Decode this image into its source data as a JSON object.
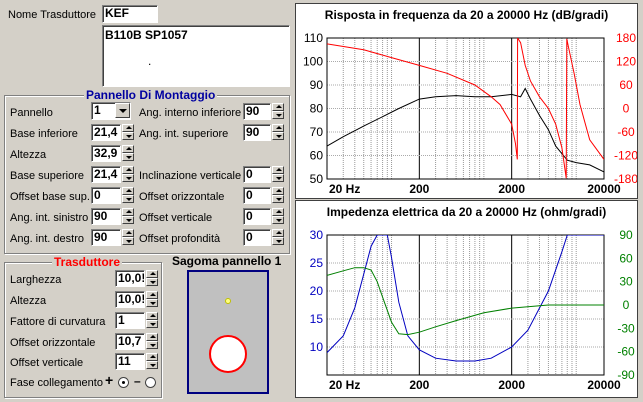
{
  "transducer_name": {
    "label": "Nome Trasduttore",
    "value": "KEF",
    "description": "B110B SP1057",
    "description_dot": "."
  },
  "panel": {
    "title": "Pannello Di Montaggio",
    "fields": {
      "pannello": {
        "label": "Pannello",
        "value": "1"
      },
      "base_inferiore": {
        "label": "Base inferiore",
        "value": "21,4"
      },
      "altezza": {
        "label": "Altezza",
        "value": "32,9"
      },
      "base_superiore": {
        "label": "Base superiore",
        "value": "21,4"
      },
      "offset_base_sup": {
        "label": "Offset base sup.",
        "value": "0"
      },
      "ang_int_sinistro": {
        "label": "Ang. int. sinistro",
        "value": "90"
      },
      "ang_int_destro": {
        "label": "Ang. int. destro",
        "value": "90"
      },
      "ang_interno_inferiore": {
        "label": "Ang. interno inferiore",
        "value": "90"
      },
      "ang_int_superiore": {
        "label": "Ang. int. superiore",
        "value": "90"
      },
      "inclinazione_verticale": {
        "label": "Inclinazione verticale",
        "value": "0"
      },
      "offset_orizzontale": {
        "label": "Offset orizzontale",
        "value": "0"
      },
      "offset_verticale": {
        "label": "Offset verticale",
        "value": "0"
      },
      "offset_profondita": {
        "label": "Offset profondità",
        "value": "0"
      }
    }
  },
  "transducer": {
    "title": "Trasduttore",
    "fields": {
      "larghezza": {
        "label": "Larghezza",
        "value": "10,0!"
      },
      "altezza": {
        "label": "Altezza",
        "value": "10,0!"
      },
      "fattore_curvatura": {
        "label": "Fattore di curvatura",
        "value": "1"
      },
      "offset_orizzontale": {
        "label": "Offset orizzontale",
        "value": "10,7"
      },
      "offset_verticale": {
        "label": "Offset verticale",
        "value": "11"
      }
    },
    "fase": {
      "label": "Fase collegamento",
      "plus": "+",
      "minus": "–",
      "selected": "plus"
    }
  },
  "shape": {
    "title": "Sagoma pannello 1"
  },
  "colors": {
    "phase": "#ff0000",
    "magnitude": "#000000",
    "impedance": "#0000c0",
    "imp_phase": "#008000",
    "accent": "#000080"
  },
  "chart_data": [
    {
      "type": "line",
      "title": "Risposta in frequenza da 20 a 20000 Hz (dB/gradi)",
      "x_scale": "log",
      "xlim": [
        20,
        20000
      ],
      "x_ticks": [
        "20 Hz",
        "200",
        "2000",
        "20000"
      ],
      "ylim_left": [
        50,
        110
      ],
      "y_ticks_left": [
        "110",
        "100",
        "90",
        "80",
        "70",
        "60",
        "50"
      ],
      "ylim_right": [
        -180,
        180
      ],
      "y_ticks_right": [
        "180",
        "120",
        "60",
        "0",
        "-60",
        "-120",
        "-180"
      ],
      "series": [
        {
          "axis": "left",
          "color": "#000000",
          "x": [
            20,
            30,
            50,
            80,
            120,
            200,
            300,
            500,
            800,
            1200,
            2000,
            2500,
            2800,
            3200,
            4000,
            5000,
            6000,
            8000,
            10000,
            14000,
            20000
          ],
          "values": [
            64,
            68,
            72.5,
            76.5,
            80,
            84,
            85,
            85.5,
            85,
            85,
            86,
            85,
            88.5,
            84,
            77,
            71,
            64,
            58,
            57,
            56,
            53
          ]
        },
        {
          "axis": "right",
          "color": "#ff0000",
          "x": [
            20,
            50,
            100,
            200,
            400,
            800,
            1200,
            1500,
            2000,
            2200,
            2300,
            2320,
            2500,
            2800,
            3200,
            4000,
            5000,
            6000,
            7000,
            7800,
            7900,
            8200,
            9500,
            11000,
            14000,
            20000
          ],
          "values": [
            165,
            150,
            130,
            110,
            90,
            60,
            30,
            10,
            -40,
            -90,
            -130,
            180,
            168,
            110,
            70,
            30,
            0,
            -40,
            -100,
            -178,
            178,
            160,
            90,
            10,
            -80,
            -130
          ]
        }
      ]
    },
    {
      "type": "line",
      "title": "Impedenza elettrica da 20 a 20000 Hz (ohm/gradi)",
      "x_scale": "log",
      "xlim": [
        20,
        20000
      ],
      "x_ticks": [
        "20 Hz",
        "200",
        "2000",
        "20000"
      ],
      "ylim_left": [
        5,
        30
      ],
      "y_ticks_left": [
        "30",
        "25",
        "20",
        "15",
        "10"
      ],
      "ylim_right": [
        -90,
        90
      ],
      "y_ticks_right": [
        "90",
        "60",
        "30",
        "0",
        "-30",
        "-60",
        "-90"
      ],
      "series": [
        {
          "axis": "left",
          "color": "#0000c0",
          "x": [
            20,
            30,
            40,
            50,
            60,
            70,
            75,
            90,
            100,
            120,
            150,
            200,
            300,
            500,
            800,
            1200,
            2000,
            3000,
            5000,
            7000,
            8000,
            9000,
            20000
          ],
          "values": [
            9,
            12,
            17,
            23,
            28,
            30,
            30,
            30,
            26,
            18,
            12,
            9.5,
            8,
            7.5,
            7.5,
            8,
            10,
            13,
            20,
            27,
            30,
            30,
            30
          ]
        },
        {
          "axis": "right",
          "color": "#008000",
          "x": [
            20,
            30,
            40,
            50,
            60,
            70,
            80,
            100,
            120,
            150,
            200,
            300,
            500,
            1000,
            2000,
            5000,
            10000,
            20000
          ],
          "values": [
            38,
            44,
            48,
            48,
            45,
            30,
            10,
            -22,
            -37,
            -38,
            -35,
            -28,
            -20,
            -10,
            -4,
            0,
            0,
            0
          ]
        }
      ]
    }
  ]
}
